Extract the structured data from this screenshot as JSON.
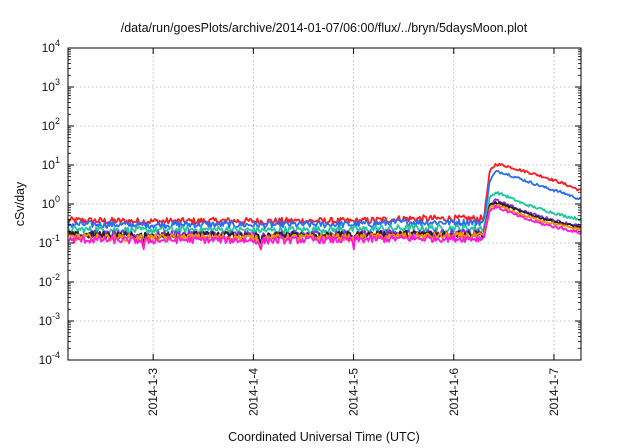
{
  "chart_data": {
    "type": "line",
    "title": "/data/run/goesPlots/archive/2014-01-07/06:00/flux/../bryn/5daysMoon.plot",
    "xlabel": "Coordinated Universal Time (UTC)",
    "ylabel": "cSv/day",
    "yscale": "log",
    "ylim": [
      0.0001,
      10000
    ],
    "xlim": [
      2.15,
      7.27
    ],
    "grid": true,
    "x_ticks": [
      {
        "value": 3,
        "label": "2014-1-3"
      },
      {
        "value": 4,
        "label": "2014-1-4"
      },
      {
        "value": 5,
        "label": "2014-1-5"
      },
      {
        "value": 6,
        "label": "2014-1-6"
      },
      {
        "value": 7,
        "label": "2014-1-7"
      }
    ],
    "y_ticks": [
      {
        "value": 0.0001,
        "base": "10",
        "exp": "-4"
      },
      {
        "value": 0.001,
        "base": "10",
        "exp": "-3"
      },
      {
        "value": 0.01,
        "base": "10",
        "exp": "-2"
      },
      {
        "value": 0.1,
        "base": "10",
        "exp": "-1"
      },
      {
        "value": 1,
        "base": "10",
        "exp": "0"
      },
      {
        "value": 10,
        "base": "10",
        "exp": "1"
      },
      {
        "value": 100,
        "base": "10",
        "exp": "2"
      },
      {
        "value": 1000,
        "base": "10",
        "exp": "3"
      },
      {
        "value": 10000,
        "base": "10",
        "exp": "4"
      }
    ],
    "series": [
      {
        "color": "#ff1a1a",
        "x": [
          2.15,
          2.5,
          2.9,
          3.3,
          3.7,
          4.1,
          4.5,
          5.0,
          5.5,
          6.0,
          6.3,
          6.36,
          6.42,
          6.5,
          6.7,
          6.9,
          7.1,
          7.27
        ],
        "y": [
          0.38,
          0.37,
          0.36,
          0.36,
          0.37,
          0.36,
          0.37,
          0.36,
          0.42,
          0.42,
          0.42,
          7.0,
          10.5,
          9.8,
          7.0,
          5.0,
          3.3,
          2.2
        ]
      },
      {
        "color": "#2a6df4",
        "x": [
          2.15,
          2.5,
          2.9,
          3.3,
          3.7,
          4.1,
          4.5,
          5.0,
          5.5,
          6.0,
          6.3,
          6.36,
          6.42,
          6.5,
          6.7,
          6.9,
          7.1,
          7.27
        ],
        "y": [
          0.3,
          0.3,
          0.29,
          0.3,
          0.3,
          0.29,
          0.3,
          0.3,
          0.34,
          0.34,
          0.34,
          4.0,
          6.8,
          6.3,
          4.1,
          2.7,
          1.9,
          1.3
        ]
      },
      {
        "color": "#1ec89a",
        "x": [
          2.15,
          2.5,
          2.9,
          3.3,
          3.7,
          4.1,
          4.5,
          5.0,
          5.5,
          6.0,
          6.3,
          6.36,
          6.42,
          6.5,
          6.7,
          6.9,
          7.1,
          7.27
        ],
        "y": [
          0.22,
          0.22,
          0.21,
          0.22,
          0.22,
          0.21,
          0.22,
          0.22,
          0.24,
          0.24,
          0.24,
          1.5,
          2.0,
          1.7,
          1.0,
          0.7,
          0.5,
          0.4
        ]
      },
      {
        "color": "#8a2be2",
        "x": [
          2.15,
          2.5,
          2.9,
          3.3,
          3.7,
          4.1,
          4.5,
          5.0,
          5.5,
          6.0,
          6.3,
          6.36,
          6.42,
          6.5,
          6.7,
          6.9,
          7.1,
          7.27
        ],
        "y": [
          0.17,
          0.17,
          0.16,
          0.17,
          0.17,
          0.16,
          0.17,
          0.17,
          0.18,
          0.18,
          0.18,
          1.0,
          1.25,
          1.05,
          0.65,
          0.45,
          0.33,
          0.27
        ]
      },
      {
        "color": "#222222",
        "x": [
          2.15,
          2.5,
          2.9,
          3.3,
          3.7,
          4.1,
          4.5,
          5.0,
          5.5,
          6.0,
          6.3,
          6.36,
          6.42,
          6.5,
          6.7,
          6.9,
          7.1,
          7.27
        ],
        "y": [
          0.16,
          0.16,
          0.15,
          0.16,
          0.16,
          0.15,
          0.16,
          0.16,
          0.17,
          0.17,
          0.17,
          0.9,
          1.1,
          0.95,
          0.6,
          0.42,
          0.31,
          0.25
        ]
      },
      {
        "color": "#ff8c00",
        "x": [
          2.15,
          2.5,
          2.9,
          3.3,
          3.7,
          4.1,
          4.5,
          5.0,
          5.5,
          6.0,
          6.3,
          6.36,
          6.42,
          6.5,
          6.7,
          6.9,
          7.1,
          7.27
        ],
        "y": [
          0.14,
          0.14,
          0.135,
          0.14,
          0.14,
          0.135,
          0.14,
          0.14,
          0.15,
          0.15,
          0.15,
          0.8,
          0.95,
          0.8,
          0.5,
          0.36,
          0.27,
          0.22
        ]
      },
      {
        "color": "#ff1ad9",
        "x": [
          2.15,
          2.5,
          2.9,
          3.3,
          3.7,
          4.1,
          4.5,
          5.0,
          5.5,
          6.0,
          6.3,
          6.36,
          6.42,
          6.5,
          6.7,
          6.9,
          7.1,
          7.27
        ],
        "y": [
          0.12,
          0.12,
          0.115,
          0.12,
          0.12,
          0.115,
          0.12,
          0.12,
          0.13,
          0.13,
          0.13,
          0.7,
          0.85,
          0.7,
          0.43,
          0.3,
          0.23,
          0.18
        ]
      }
    ],
    "dips": [
      {
        "x": 2.9,
        "depth": 0.55
      },
      {
        "x": 4.07,
        "depth": 0.7
      },
      {
        "x": 5.0,
        "depth": 0.45
      }
    ]
  }
}
